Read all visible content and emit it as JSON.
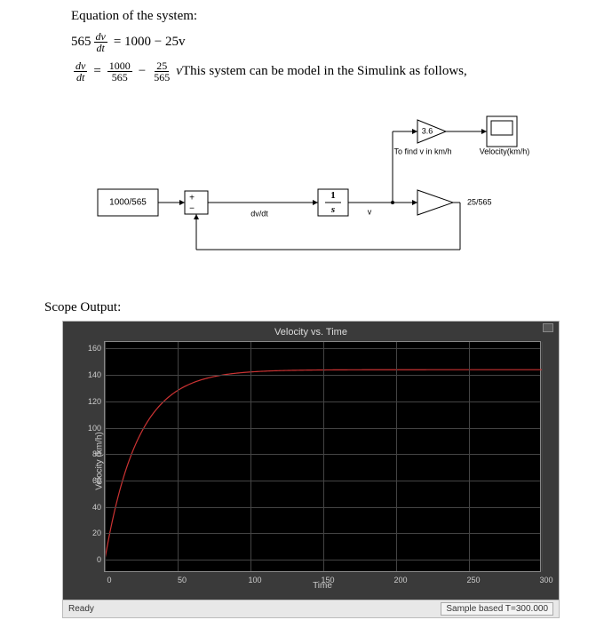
{
  "equations": {
    "heading": "Equation of the system:",
    "eq1_coeff": "565",
    "eq1_frac_num": "dv",
    "eq1_frac_den": "dt",
    "eq1_rhs": "= 1000 − 25v",
    "eq2_lhs_num": "dv",
    "eq2_lhs_den": "dt",
    "eq2_mid": "=",
    "eq2_t1_num": "1000",
    "eq2_t1_den": "565",
    "eq2_minus": "−",
    "eq2_t2_num": "25",
    "eq2_t2_den": "565",
    "eq2_var": "v",
    "eq2_tail": " This system can be model in the Simulink as follows,"
  },
  "simulink": {
    "constant_block": "1000/565",
    "sum_label": "+",
    "sum_label2": "−",
    "dvdt_label": "dv/dt",
    "integrator_num": "1",
    "integrator_den": "s",
    "v_label": "v",
    "gain1": "25/565",
    "gain2": "3.6",
    "annot1": "To find v in km/h",
    "annot2": "Velocity(km/h)",
    "block_border": "#000000",
    "block_fill": "#ffffff",
    "line_color": "#000000",
    "font_size_block": 10,
    "font_size_small": 9
  },
  "scope": {
    "heading": "Scope Output:",
    "title": "Velocity vs. Time",
    "ylabel": "Velocity (km/h)",
    "xlabel": "Time",
    "status_left": "Ready",
    "status_right": "Sample based   T=300.000",
    "xlim": [
      0,
      300
    ],
    "ylim": [
      -10,
      165
    ],
    "yticks": [
      0,
      20,
      40,
      60,
      80,
      100,
      120,
      140,
      160
    ],
    "xticks": [
      0,
      50,
      100,
      150,
      200,
      250,
      300
    ],
    "line_color": "#cc3333",
    "grid_color": "#444444",
    "bg_color": "#000000",
    "outer_bg": "#3a3a3a",
    "tick_color": "#cccccc",
    "line_width": 1.2,
    "curve": {
      "type": "exponential_rise",
      "steady_state": 144,
      "tau": 22.6,
      "t_range": [
        0,
        300
      ]
    }
  }
}
